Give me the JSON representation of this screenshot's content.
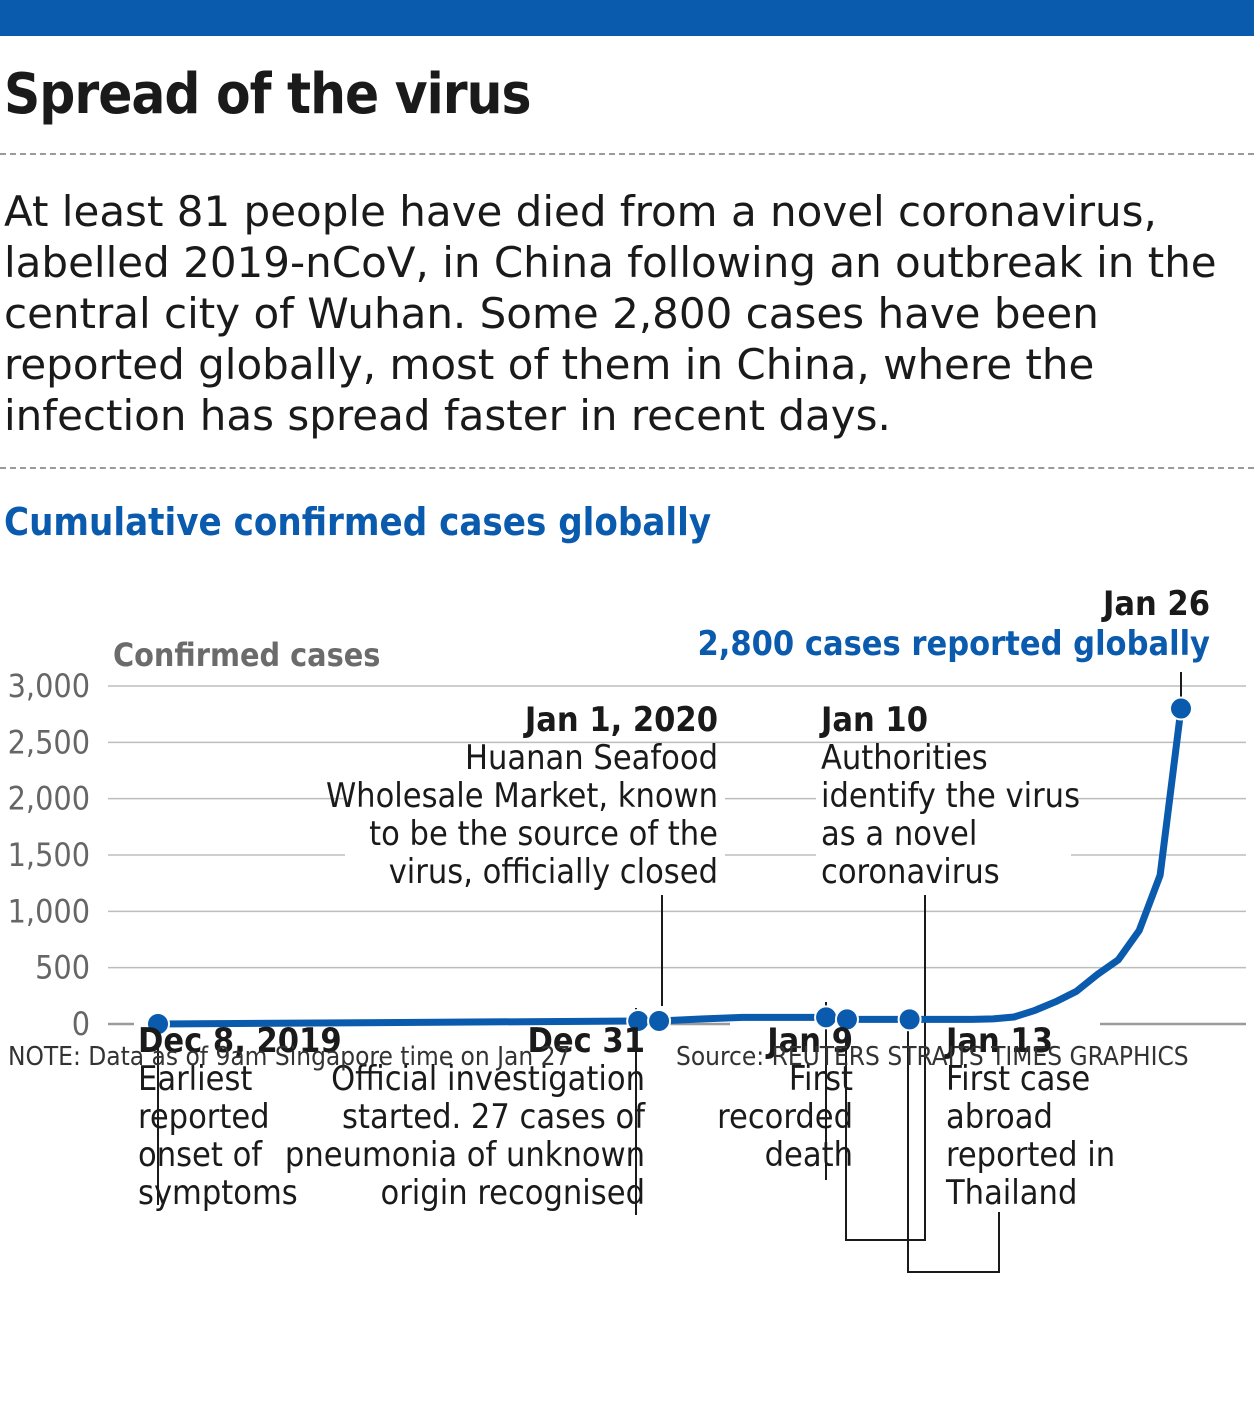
{
  "header": {
    "title": "Spread of the virus",
    "intro": "At least 81 people have died from a novel coronavirus, labelled 2019-nCoV, in China following an outbreak in the central city of Wuhan. Some 2,800 cases have been reported globally, most of them in China, where the infection has spread faster in recent days."
  },
  "colors": {
    "accent": "#0a5aad",
    "grid": "#bdbdbd",
    "axis_text": "#666666",
    "text": "#1a1a1a"
  },
  "chart_data": {
    "type": "line",
    "title": "Cumulative confirmed cases globally",
    "ylabel": "Confirmed cases",
    "xlabel": "",
    "ylim": [
      0,
      3000
    ],
    "yticks": [
      0,
      500,
      1000,
      1500,
      2000,
      2500,
      3000
    ],
    "ytick_labels": [
      "0",
      "500",
      "1,000",
      "1,500",
      "2,000",
      "2,500",
      "3,000"
    ],
    "grid": true,
    "xrange": [
      "2019-12-08",
      "2020-01-26"
    ],
    "series": [
      {
        "name": "",
        "x": [
          "2019-12-08",
          "2019-12-31",
          "2020-01-01",
          "2020-01-03",
          "2020-01-05",
          "2020-01-09",
          "2020-01-10",
          "2020-01-11",
          "2020-01-13",
          "2020-01-16",
          "2020-01-17",
          "2020-01-18",
          "2020-01-19",
          "2020-01-20",
          "2020-01-21",
          "2020-01-22",
          "2020-01-23",
          "2020-01-24",
          "2020-01-25",
          "2020-01-26"
        ],
        "y": [
          0,
          27,
          27,
          44,
          59,
          59,
          41,
          41,
          41,
          41,
          45,
          62,
          121,
          198,
          291,
          440,
          571,
          830,
          1320,
          2800
        ]
      }
    ],
    "markers": [
      {
        "x": "2019-12-08",
        "y": 0
      },
      {
        "x": "2019-12-31",
        "y": 27
      },
      {
        "x": "2020-01-01",
        "y": 27
      },
      {
        "x": "2020-01-09",
        "y": 59
      },
      {
        "x": "2020-01-10",
        "y": 41
      },
      {
        "x": "2020-01-13",
        "y": 41
      },
      {
        "x": "2020-01-26",
        "y": 2800
      }
    ],
    "annotations": [
      {
        "date_label": "Dec 8, 2019",
        "text": [
          "Earliest",
          "reported",
          "onset of",
          "symptoms"
        ]
      },
      {
        "date_label": "Dec 31",
        "text": [
          "Official investigation",
          "started. 27 cases of",
          "pneumonia of unknown",
          "origin recognised"
        ]
      },
      {
        "date_label": "Jan 1, 2020",
        "text": [
          "Huanan Seafood",
          "Wholesale Market, known",
          "to be the source of the",
          "virus, officially closed"
        ]
      },
      {
        "date_label": "Jan 9",
        "text": [
          "First",
          "recorded",
          "death"
        ]
      },
      {
        "date_label": "Jan 10",
        "text": [
          "Authorities",
          "identify the virus",
          "as a novel",
          "coronavirus"
        ]
      },
      {
        "date_label": "Jan 13",
        "text": [
          "First case",
          "abroad",
          "reported in",
          "Thailand"
        ]
      },
      {
        "date_label": "Jan 26",
        "text": [
          "2,800 cases reported globally"
        ]
      }
    ]
  },
  "footer": {
    "note": "NOTE: Data as of 9am Singapore time on Jan 27",
    "source": "Source: REUTERS  STRAITS TIMES GRAPHICS"
  }
}
